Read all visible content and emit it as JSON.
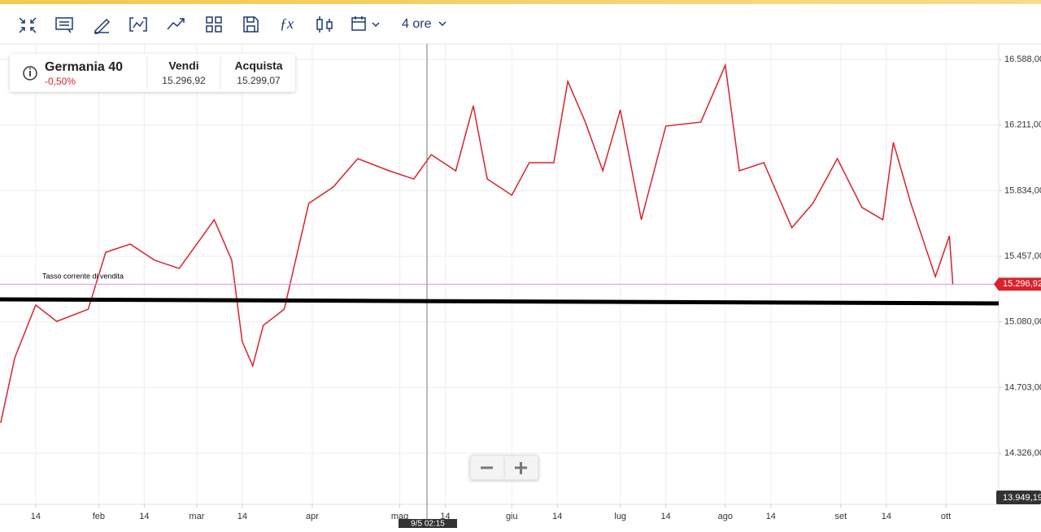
{
  "toolbar": {
    "timeframe": "4 ore"
  },
  "instrument": {
    "name": "Germania 40",
    "change": "-0,50%",
    "sell_label": "Vendi",
    "sell": "15.296,92",
    "buy_label": "Acquista",
    "buy": "15.299,07"
  },
  "chart": {
    "type": "line",
    "current_rate_label": "Tasso corrente di vendita",
    "current_price": {
      "value": 15296.92,
      "label": "15.296,92"
    },
    "axis_bottom_label": "13.949,19",
    "crosshair_label": "9/5 02:15",
    "xlim": [
      2.8,
      286.7
    ],
    "ylim": [
      14032,
      16677
    ],
    "xticks": [
      {
        "value": 13,
        "label": "14"
      },
      {
        "value": 31,
        "label": "feb"
      },
      {
        "value": 44,
        "label": "14"
      },
      {
        "value": 59,
        "label": "mar"
      },
      {
        "value": 72,
        "label": "14"
      },
      {
        "value": 92,
        "label": "apr"
      },
      {
        "value": 117,
        "label": "mag"
      },
      {
        "value": 130,
        "label": "14"
      },
      {
        "value": 149,
        "label": "giu"
      },
      {
        "value": 162,
        "label": "14"
      },
      {
        "value": 180,
        "label": "lug"
      },
      {
        "value": 193,
        "label": "14"
      },
      {
        "value": 210,
        "label": "ago"
      },
      {
        "value": 223,
        "label": "14"
      },
      {
        "value": 243,
        "label": "set"
      },
      {
        "value": 256,
        "label": "14"
      },
      {
        "value": 273,
        "label": "ott"
      }
    ],
    "yticks": [
      {
        "value": 16588,
        "label": "16.588,00"
      },
      {
        "value": 16211,
        "label": "16.211,00"
      },
      {
        "value": 15834,
        "label": "15.834,00"
      },
      {
        "value": 15457,
        "label": "15.457,00"
      },
      {
        "value": 15080,
        "label": "15.080,00"
      },
      {
        "value": 14703,
        "label": "14.703,00"
      },
      {
        "value": 14326,
        "label": "14.326,00"
      }
    ],
    "grid": true,
    "series": [
      {
        "color": "#d8232a",
        "x": [
          3,
          7,
          13,
          19,
          28,
          33,
          40,
          47,
          54,
          64,
          69,
          72,
          75,
          78,
          84,
          91,
          98,
          105,
          114,
          121,
          126,
          133,
          138,
          142,
          149,
          154,
          161,
          165,
          170,
          175,
          180,
          186,
          193,
          203,
          210,
          214,
          221,
          229,
          235,
          242,
          249,
          255,
          258,
          263,
          270,
          274,
          275
        ],
        "values": [
          14500,
          14873,
          15177,
          15083,
          15153,
          15480,
          15527,
          15434,
          15387,
          15667,
          15434,
          14967,
          14827,
          15060,
          15153,
          15761,
          15855,
          16018,
          15948,
          15901,
          16041,
          15948,
          16322,
          15901,
          15808,
          15995,
          15995,
          16462,
          16228,
          15948,
          16298,
          15667,
          16205,
          16228,
          16555,
          15948,
          15995,
          15621,
          15761,
          16018,
          15738,
          15667,
          16111,
          15761,
          15340,
          15574,
          15294
        ]
      }
    ]
  }
}
